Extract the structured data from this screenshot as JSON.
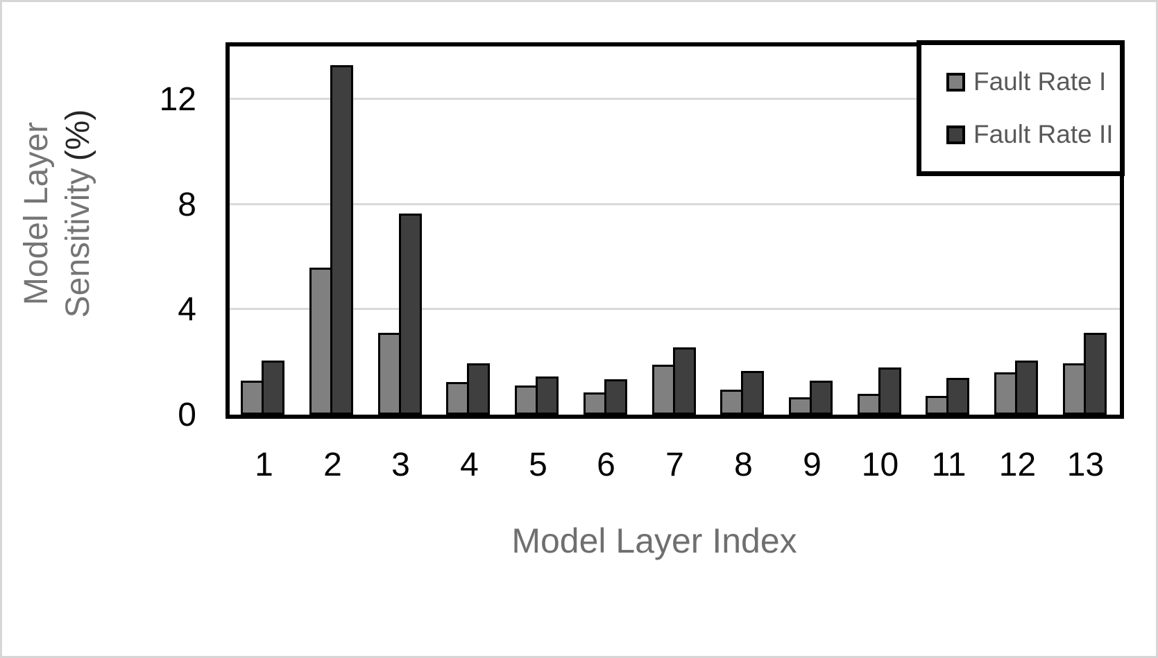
{
  "chart_data": {
    "type": "bar",
    "title": "",
    "xlabel": "Model Layer Index",
    "ylabel_line1": "Model Layer",
    "ylabel_line2": "Sensitivity",
    "ylabel_unit": "(%)",
    "categories": [
      "1",
      "2",
      "3",
      "4",
      "5",
      "6",
      "7",
      "8",
      "9",
      "10",
      "11",
      "12",
      "13"
    ],
    "series": [
      {
        "name": "Fault Rate I",
        "color": "#808080",
        "values": [
          1.3,
          5.6,
          3.1,
          1.25,
          1.1,
          0.85,
          1.9,
          0.95,
          0.65,
          0.8,
          0.7,
          1.6,
          1.95
        ]
      },
      {
        "name": "Fault Rate II",
        "color": "#3f3f3f",
        "values": [
          2.05,
          13.3,
          7.65,
          1.95,
          1.45,
          1.35,
          2.55,
          1.65,
          1.3,
          1.8,
          1.4,
          2.05,
          3.1
        ]
      }
    ],
    "ylim": [
      0,
      14
    ],
    "yticks": [
      0,
      4,
      8,
      12
    ],
    "grid": true,
    "legend_position": "top-right",
    "colors": {
      "bar_outline": "#000000",
      "gridline": "#d9d9d9",
      "plot_border": "#000000",
      "tick_label": "#000000",
      "axis_title": "#6f6f6f",
      "legend_text": "#595959",
      "frame": "#d6d6d6",
      "background": "#ffffff"
    }
  }
}
